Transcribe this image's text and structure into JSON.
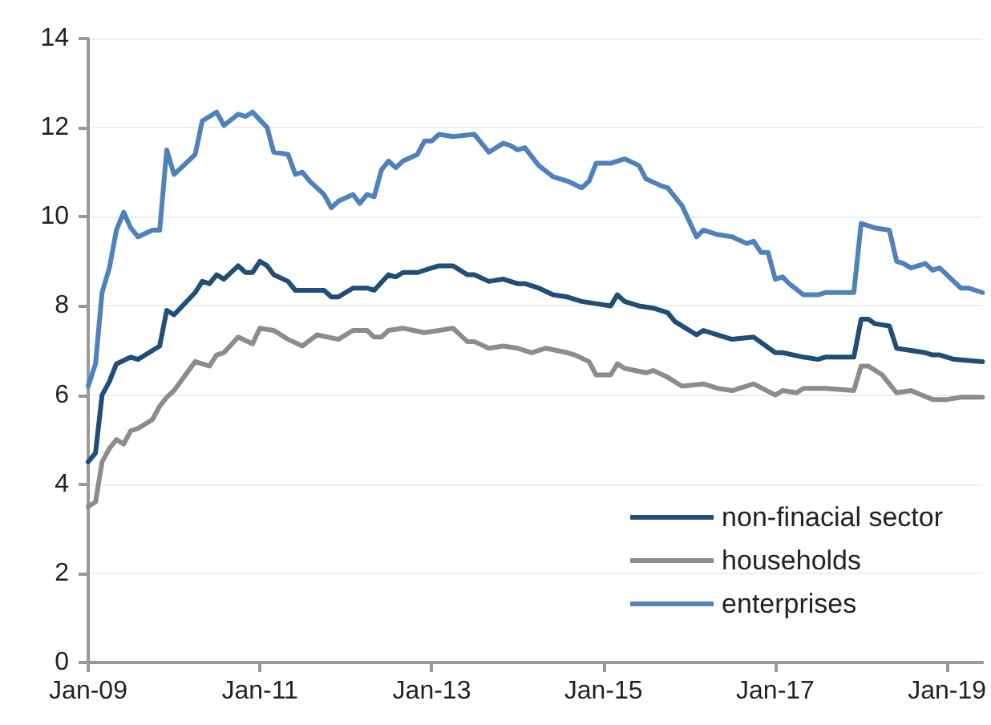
{
  "chart_data": {
    "type": "line",
    "legend": "bottom right",
    "grid": "y",
    "line_style": "solid",
    "marker": "none",
    "xlim": [
      "2009-01",
      "2019-06"
    ],
    "xticks": [
      {
        "value": "2009-01",
        "label": "Jan-09"
      },
      {
        "value": "2011-01",
        "label": "Jan-11"
      },
      {
        "value": "2013-01",
        "label": "Jan-13"
      },
      {
        "value": "2015-01",
        "label": "Jan-15"
      },
      {
        "value": "2017-01",
        "label": "Jan-17"
      },
      {
        "value": "2019-01",
        "label": "Jan-19"
      }
    ],
    "ylim": [
      0,
      14
    ],
    "yticks": [
      0,
      2,
      4,
      6,
      8,
      10,
      12,
      14
    ],
    "series": [
      {
        "name": "non-finacial sector",
        "color": "#1f4e79",
        "x": [
          "2009-01",
          "2009-02",
          "2009-03",
          "2009-04",
          "2009-05",
          "2009-07",
          "2009-08",
          "2009-09",
          "2009-11",
          "2009-12",
          "2010-01",
          "2010-04",
          "2010-05",
          "2010-06",
          "2010-07",
          "2010-08",
          "2010-10",
          "2010-11",
          "2010-12",
          "2011-01",
          "2011-02",
          "2011-03",
          "2011-05",
          "2011-06",
          "2011-10",
          "2011-11",
          "2011-12",
          "2012-02",
          "2012-03",
          "2012-04",
          "2012-05",
          "2012-07",
          "2012-08",
          "2012-09",
          "2012-11",
          "2013-01",
          "2013-02",
          "2013-04",
          "2013-06",
          "2013-07",
          "2013-09",
          "2013-11",
          "2014-01",
          "2014-02",
          "2014-04",
          "2014-06",
          "2014-08",
          "2014-10",
          "2014-12",
          "2015-02",
          "2015-03",
          "2015-04",
          "2015-06",
          "2015-08",
          "2015-10",
          "2015-11",
          "2016-02",
          "2016-03",
          "2016-05",
          "2016-07",
          "2016-10",
          "2017-01",
          "2017-02",
          "2017-05",
          "2017-07",
          "2017-08",
          "2017-12",
          "2018-01",
          "2018-02",
          "2018-03",
          "2018-05",
          "2018-06",
          "2018-08",
          "2018-10",
          "2018-11",
          "2018-12",
          "2019-02",
          "2019-06"
        ],
        "values": [
          4.5,
          4.7,
          6.0,
          6.3,
          6.7,
          6.85,
          6.8,
          6.9,
          7.1,
          7.9,
          7.8,
          8.3,
          8.55,
          8.5,
          8.7,
          8.6,
          8.9,
          8.75,
          8.75,
          9.0,
          8.9,
          8.7,
          8.55,
          8.35,
          8.35,
          8.2,
          8.2,
          8.4,
          8.4,
          8.4,
          8.35,
          8.7,
          8.65,
          8.75,
          8.75,
          8.85,
          8.9,
          8.9,
          8.7,
          8.7,
          8.55,
          8.6,
          8.5,
          8.5,
          8.4,
          8.25,
          8.2,
          8.1,
          8.05,
          8.0,
          8.25,
          8.1,
          8.0,
          7.95,
          7.85,
          7.65,
          7.35,
          7.45,
          7.35,
          7.25,
          7.3,
          6.95,
          6.95,
          6.85,
          6.8,
          6.85,
          6.85,
          7.7,
          7.7,
          7.6,
          7.55,
          7.05,
          7.0,
          6.95,
          6.9,
          6.9,
          6.8,
          6.75
        ]
      },
      {
        "name": "households",
        "color": "#8c8c8c",
        "x": [
          "2009-01",
          "2009-02",
          "2009-03",
          "2009-04",
          "2009-05",
          "2009-06",
          "2009-07",
          "2009-08",
          "2009-10",
          "2009-11",
          "2009-12",
          "2010-01",
          "2010-04",
          "2010-06",
          "2010-07",
          "2010-08",
          "2010-10",
          "2010-12",
          "2011-01",
          "2011-03",
          "2011-05",
          "2011-07",
          "2011-09",
          "2011-12",
          "2012-02",
          "2012-04",
          "2012-05",
          "2012-06",
          "2012-07",
          "2012-09",
          "2012-12",
          "2013-02",
          "2013-04",
          "2013-06",
          "2013-07",
          "2013-09",
          "2013-11",
          "2014-01",
          "2014-03",
          "2014-05",
          "2014-08",
          "2014-09",
          "2014-11",
          "2014-12",
          "2015-02",
          "2015-03",
          "2015-04",
          "2015-07",
          "2015-08",
          "2015-10",
          "2015-12",
          "2016-03",
          "2016-05",
          "2016-07",
          "2016-10",
          "2017-01",
          "2017-02",
          "2017-04",
          "2017-05",
          "2017-08",
          "2017-12",
          "2018-01",
          "2018-02",
          "2018-04",
          "2018-06",
          "2018-08",
          "2018-11",
          "2019-01",
          "2019-03",
          "2019-06"
        ],
        "values": [
          3.5,
          3.6,
          4.5,
          4.8,
          5.0,
          4.9,
          5.2,
          5.25,
          5.45,
          5.75,
          5.95,
          6.1,
          6.75,
          6.65,
          6.9,
          6.95,
          7.3,
          7.15,
          7.5,
          7.45,
          7.25,
          7.1,
          7.35,
          7.25,
          7.45,
          7.45,
          7.3,
          7.3,
          7.45,
          7.5,
          7.4,
          7.45,
          7.5,
          7.2,
          7.2,
          7.05,
          7.1,
          7.05,
          6.95,
          7.05,
          6.95,
          6.9,
          6.75,
          6.45,
          6.45,
          6.7,
          6.6,
          6.5,
          6.55,
          6.4,
          6.2,
          6.25,
          6.15,
          6.1,
          6.25,
          6.0,
          6.1,
          6.05,
          6.15,
          6.15,
          6.1,
          6.65,
          6.65,
          6.45,
          6.05,
          6.1,
          5.9,
          5.9,
          5.95,
          5.95
        ]
      },
      {
        "name": "enterprises",
        "color": "#4f81bd",
        "x": [
          "2009-01",
          "2009-02",
          "2009-03",
          "2009-04",
          "2009-05",
          "2009-06",
          "2009-07",
          "2009-08",
          "2009-10",
          "2009-11",
          "2009-12",
          "2010-01",
          "2010-02",
          "2010-04",
          "2010-05",
          "2010-06",
          "2010-07",
          "2010-08",
          "2010-10",
          "2010-11",
          "2010-12",
          "2011-02",
          "2011-03",
          "2011-05",
          "2011-06",
          "2011-07",
          "2011-08",
          "2011-10",
          "2011-11",
          "2011-12",
          "2012-02",
          "2012-03",
          "2012-04",
          "2012-05",
          "2012-06",
          "2012-07",
          "2012-08",
          "2012-09",
          "2012-11",
          "2012-12",
          "2013-01",
          "2013-02",
          "2013-04",
          "2013-07",
          "2013-09",
          "2013-11",
          "2013-12",
          "2014-01",
          "2014-02",
          "2014-04",
          "2014-06",
          "2014-08",
          "2014-10",
          "2014-11",
          "2014-12",
          "2015-02",
          "2015-04",
          "2015-06",
          "2015-07",
          "2015-09",
          "2015-10",
          "2015-12",
          "2016-02",
          "2016-03",
          "2016-05",
          "2016-07",
          "2016-09",
          "2016-10",
          "2016-11",
          "2016-12",
          "2017-01",
          "2017-02",
          "2017-03",
          "2017-05",
          "2017-07",
          "2017-08",
          "2017-11",
          "2017-12",
          "2018-01",
          "2018-03",
          "2018-05",
          "2018-06",
          "2018-07",
          "2018-08",
          "2018-10",
          "2018-11",
          "2018-12",
          "2019-03",
          "2019-04",
          "2019-06"
        ],
        "values": [
          6.2,
          6.7,
          8.3,
          8.85,
          9.7,
          10.1,
          9.75,
          9.55,
          9.7,
          9.7,
          11.5,
          10.95,
          11.1,
          11.4,
          12.15,
          12.25,
          12.35,
          12.05,
          12.3,
          12.25,
          12.35,
          12.0,
          11.45,
          11.4,
          10.95,
          11.0,
          10.8,
          10.5,
          10.2,
          10.35,
          10.5,
          10.3,
          10.5,
          10.45,
          11.05,
          11.25,
          11.1,
          11.25,
          11.4,
          11.7,
          11.7,
          11.85,
          11.8,
          11.85,
          11.45,
          11.65,
          11.6,
          11.5,
          11.55,
          11.15,
          10.9,
          10.8,
          10.65,
          10.8,
          11.2,
          11.2,
          11.3,
          11.15,
          10.85,
          10.7,
          10.65,
          10.25,
          9.55,
          9.7,
          9.6,
          9.55,
          9.4,
          9.45,
          9.2,
          9.2,
          8.6,
          8.65,
          8.5,
          8.25,
          8.25,
          8.3,
          8.3,
          8.3,
          9.85,
          9.75,
          9.7,
          9.0,
          8.95,
          8.85,
          8.95,
          8.8,
          8.85,
          8.4,
          8.4,
          8.3
        ]
      }
    ]
  }
}
